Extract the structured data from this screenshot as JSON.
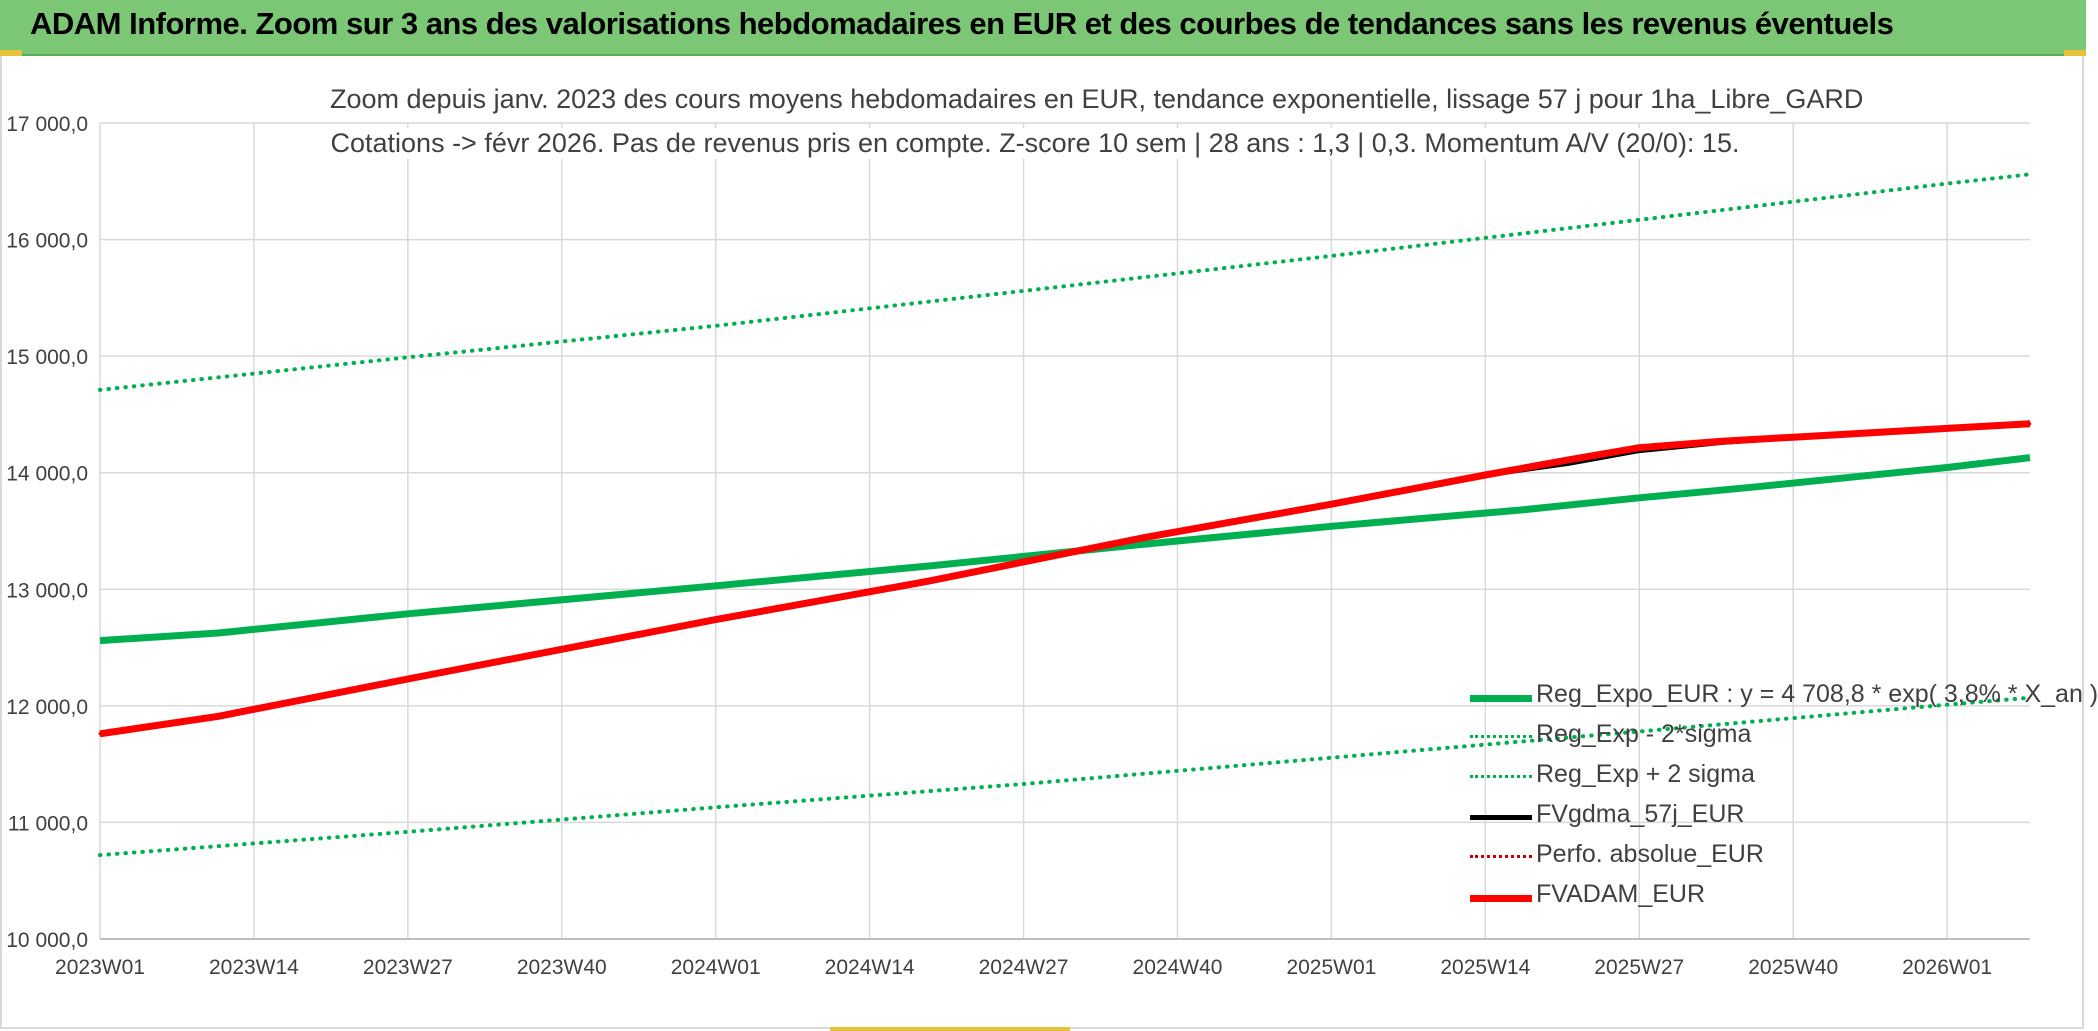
{
  "banner": {
    "title": "ADAM Informe. Zoom sur 3 ans des valorisations hebdomadaires en EUR et des courbes de tendances sans les revenus éventuels"
  },
  "chart_data": {
    "type": "line",
    "title_line1": "Zoom depuis janv. 2023 des cours moyens hebdomadaires en EUR, tendance exponentielle, lissage 57 j pour 1ha_Libre_GARD",
    "title_line2": "Cotations -> févr 2026. Pas de revenus pris en compte. Z-score 10 sem | 28 ans : 1,3 | 0,3. Momentum A/V (20/0): 15.",
    "xlabel": "",
    "ylabel": "",
    "ylim": [
      10000,
      17000
    ],
    "yticks": [
      10000,
      11000,
      12000,
      13000,
      14000,
      15000,
      16000,
      17000
    ],
    "ytick_labels": [
      "10 000,0",
      "11 000,0",
      "12 000,0",
      "13 000,0",
      "14 000,0",
      "15 000,0",
      "16 000,0",
      "17 000,0"
    ],
    "x_weeks_total": 163,
    "xticks": [
      {
        "week": 0,
        "label": "2023W01"
      },
      {
        "week": 13,
        "label": "2023W14"
      },
      {
        "week": 26,
        "label": "2023W27"
      },
      {
        "week": 39,
        "label": "2023W40"
      },
      {
        "week": 52,
        "label": "2024W01"
      },
      {
        "week": 65,
        "label": "2024W14"
      },
      {
        "week": 78,
        "label": "2024W27"
      },
      {
        "week": 91,
        "label": "2024W40"
      },
      {
        "week": 104,
        "label": "2025W01"
      },
      {
        "week": 117,
        "label": "2025W14"
      },
      {
        "week": 130,
        "label": "2025W27"
      },
      {
        "week": 143,
        "label": "2025W40"
      },
      {
        "week": 156,
        "label": "2026W01"
      }
    ],
    "grid": true,
    "legend_position": "bottom-right",
    "series": [
      {
        "name": "Reg_Expo_EUR : y = 4 708,8 * exp( 3,8% * X_an )",
        "color": "#00b050",
        "style": "solid",
        "width": 7,
        "points": [
          [
            0,
            12560
          ],
          [
            10,
            12625
          ],
          [
            26,
            12790
          ],
          [
            52,
            13030
          ],
          [
            70,
            13200
          ],
          [
            90,
            13405
          ],
          [
            104,
            13540
          ],
          [
            120,
            13680
          ],
          [
            130,
            13785
          ],
          [
            140,
            13880
          ],
          [
            156,
            14045
          ],
          [
            163,
            14130
          ]
        ]
      },
      {
        "name": "Reg_Exp - 2*sigma",
        "color": "#00b050",
        "style": "dotted",
        "width": 4,
        "points": [
          [
            0,
            10720
          ],
          [
            26,
            10920
          ],
          [
            52,
            11130
          ],
          [
            78,
            11330
          ],
          [
            104,
            11555
          ],
          [
            130,
            11780
          ],
          [
            156,
            12010
          ],
          [
            163,
            12070
          ]
        ]
      },
      {
        "name": "Reg_Exp + 2 sigma",
        "color": "#00b050",
        "style": "dotted",
        "width": 4,
        "points": [
          [
            0,
            14710
          ],
          [
            26,
            14990
          ],
          [
            52,
            15260
          ],
          [
            78,
            15560
          ],
          [
            104,
            15860
          ],
          [
            130,
            16170
          ],
          [
            156,
            16480
          ],
          [
            163,
            16560
          ]
        ]
      },
      {
        "name": "FVgdma_57j_EUR",
        "color": "#000000",
        "style": "solid",
        "width": 5,
        "points": [
          [
            0,
            11760
          ],
          [
            10,
            11910
          ],
          [
            26,
            12230
          ],
          [
            52,
            12740
          ],
          [
            70,
            13070
          ],
          [
            88,
            13440
          ],
          [
            104,
            13730
          ],
          [
            117,
            13980
          ],
          [
            124,
            14080
          ],
          [
            130,
            14190
          ],
          [
            137,
            14260
          ],
          [
            143,
            14300
          ],
          [
            156,
            14380
          ],
          [
            163,
            14420
          ]
        ]
      },
      {
        "name": "Perfo. absolue_EUR",
        "color": "#c00000",
        "style": "dotted",
        "width": 3,
        "points": [
          [
            0,
            11760
          ],
          [
            10,
            11910
          ],
          [
            26,
            12230
          ],
          [
            52,
            12740
          ],
          [
            70,
            13070
          ],
          [
            88,
            13440
          ],
          [
            104,
            13730
          ],
          [
            117,
            13980
          ],
          [
            124,
            14110
          ],
          [
            130,
            14215
          ],
          [
            137,
            14270
          ],
          [
            143,
            14305
          ],
          [
            156,
            14380
          ],
          [
            163,
            14420
          ]
        ]
      },
      {
        "name": "FVADAM_EUR",
        "color": "#ff0000",
        "style": "solid",
        "width": 7,
        "points": [
          [
            0,
            11760
          ],
          [
            10,
            11910
          ],
          [
            26,
            12230
          ],
          [
            52,
            12740
          ],
          [
            70,
            13070
          ],
          [
            88,
            13440
          ],
          [
            104,
            13730
          ],
          [
            117,
            13980
          ],
          [
            124,
            14110
          ],
          [
            130,
            14215
          ],
          [
            137,
            14270
          ],
          [
            143,
            14305
          ],
          [
            156,
            14380
          ],
          [
            163,
            14420
          ]
        ]
      }
    ]
  }
}
